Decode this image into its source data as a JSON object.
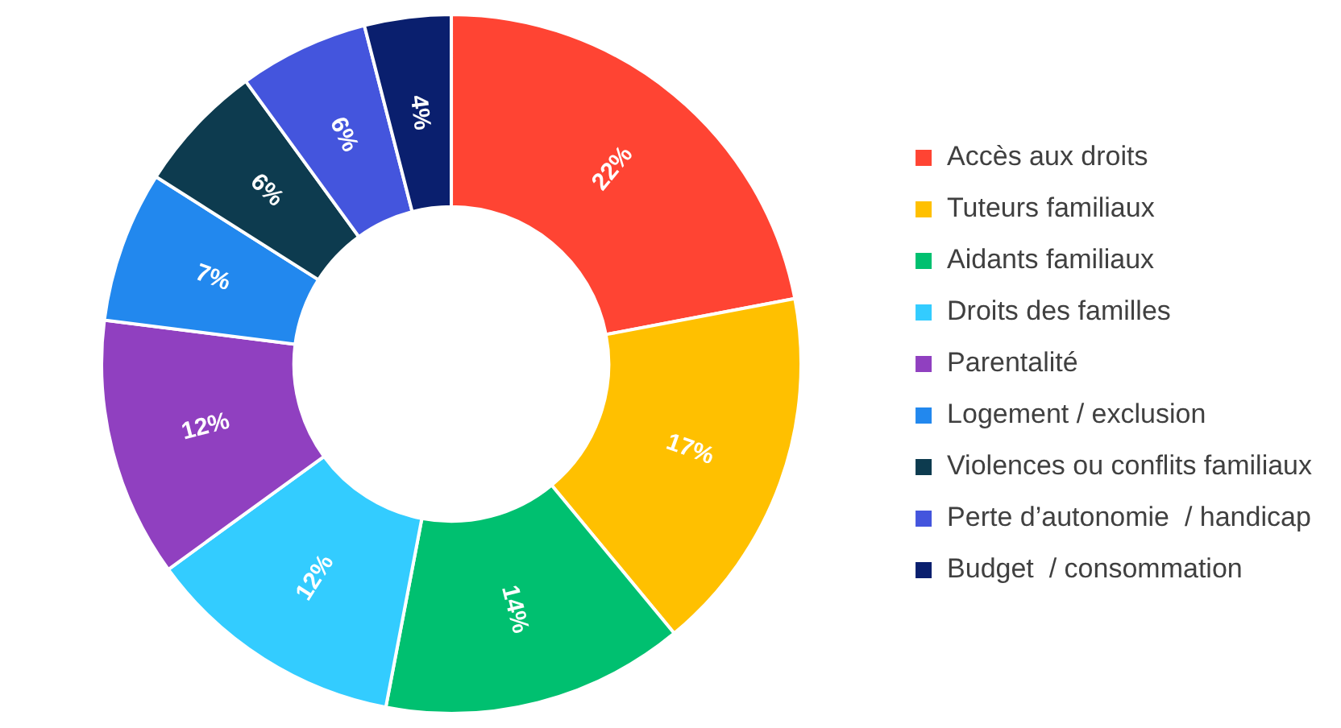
{
  "chart_data": {
    "type": "donut",
    "categories": [
      "Accès aux droits",
      "Tuteurs familiaux",
      "Aidants familiaux",
      "Droits des familles",
      "Parentalité",
      "Logement / exclusion",
      "Violences ou conflits familiaux",
      "Perte d’autonomie  / handicap",
      "Budget  / consommation"
    ],
    "values": [
      22,
      17,
      14,
      12,
      12,
      7,
      6,
      6,
      4
    ],
    "value_labels": [
      "22%",
      "17%",
      "14%",
      "12%",
      "12%",
      "7%",
      "6%",
      "6%",
      "4%"
    ],
    "colors": [
      "#ff4433",
      "#ffc000",
      "#00c070",
      "#33ccff",
      "#9040c0",
      "#2288ee",
      "#0d3b4f",
      "#4455dd",
      "#0a1f6e"
    ],
    "legend": "right"
  }
}
